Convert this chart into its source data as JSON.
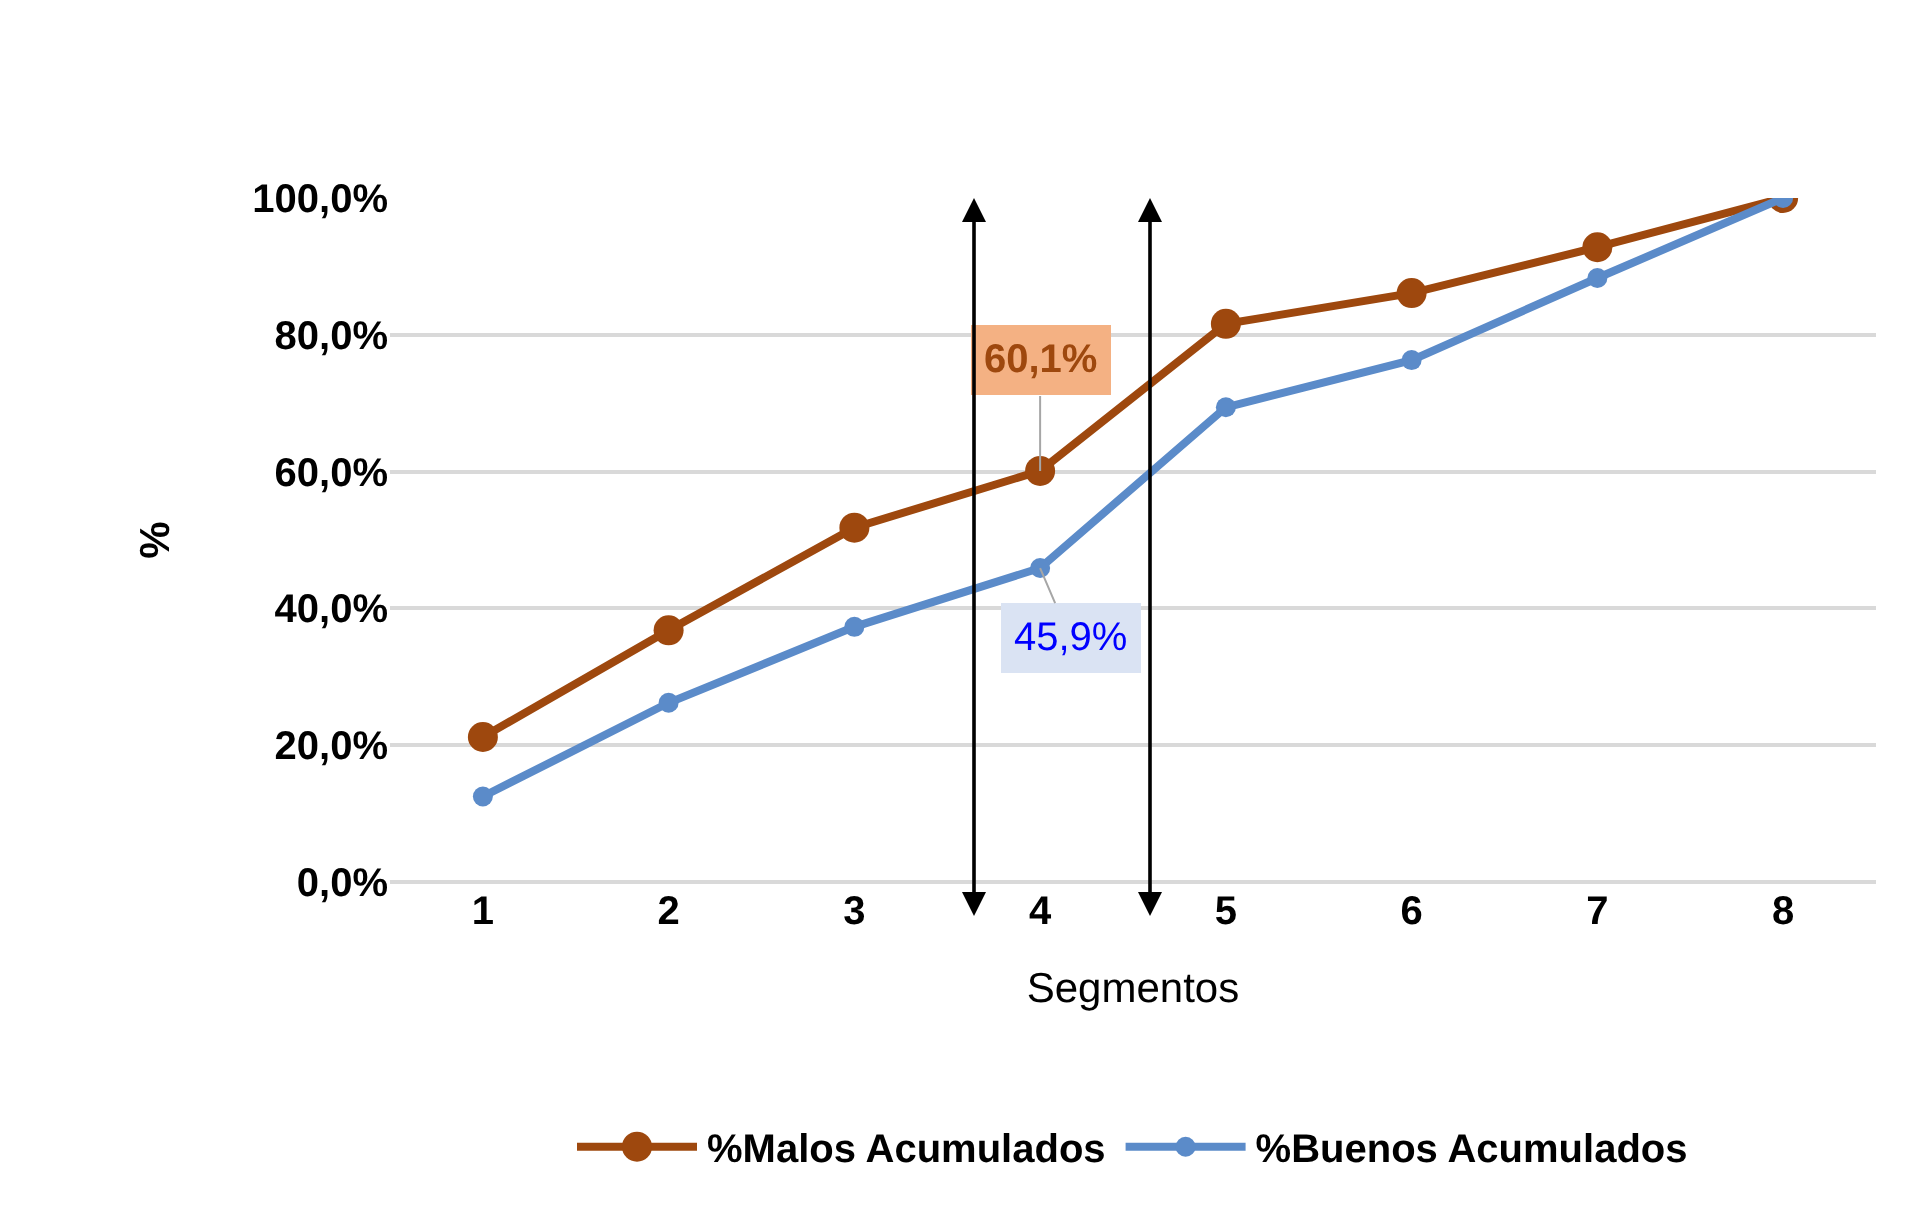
{
  "chart_data": {
    "type": "line",
    "xlabel": "Segmentos",
    "ylabel": "%",
    "categories": [
      "1",
      "2",
      "3",
      "4",
      "5",
      "6",
      "7",
      "8"
    ],
    "series": [
      {
        "name": "%Malos Acumulados",
        "color": "#9e480e",
        "values": [
          21.2,
          36.8,
          51.8,
          60.1,
          81.6,
          86.1,
          92.8,
          100
        ]
      },
      {
        "name": "%Buenos Acumulados",
        "color": "#5b8bc9",
        "values": [
          12.5,
          26.2,
          37.3,
          45.9,
          69.4,
          76.3,
          88.3,
          100
        ]
      }
    ],
    "annotations": [
      {
        "text": "60,1%",
        "x": "4",
        "y": 60.1
      },
      {
        "text": "45,9%",
        "x": "4",
        "y": 45.9
      }
    ],
    "ylim": [
      0,
      100
    ],
    "yticks": [
      {
        "value": 0,
        "label": "0,0%"
      },
      {
        "value": 20,
        "label": "20,0%"
      },
      {
        "value": 40,
        "label": "40,0%"
      },
      {
        "value": 60,
        "label": "60,0%"
      },
      {
        "value": 80,
        "label": "80,0%"
      },
      {
        "value": 100,
        "label": "100,0%"
      }
    ],
    "grid": "y",
    "legend": "bottom",
    "marker": "circle",
    "line_style": "solid"
  }
}
